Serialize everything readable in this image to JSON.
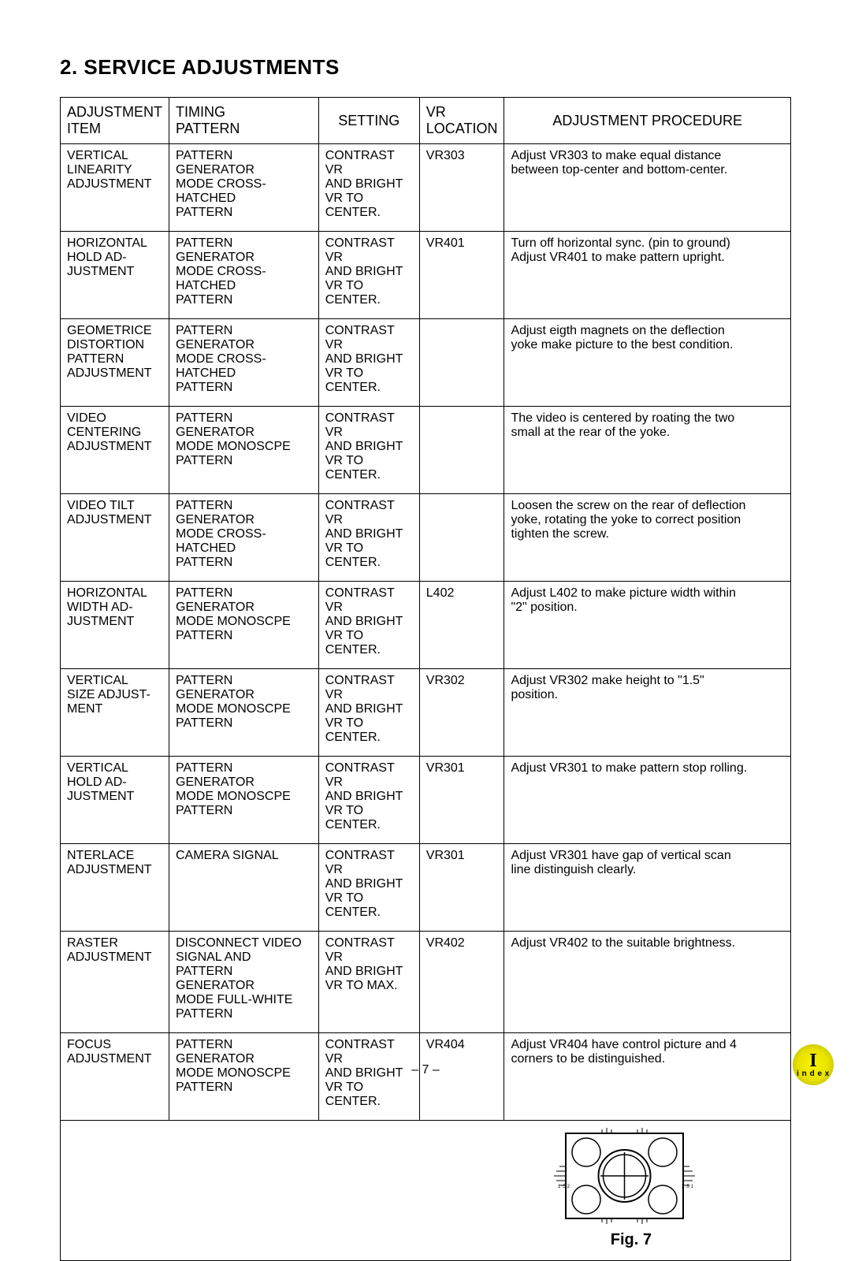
{
  "section_title": "2. SERVICE ADJUSTMENTS",
  "headers": {
    "item": [
      "ADJUSTMENT",
      "ITEM"
    ],
    "timing": [
      "TIMING",
      "PATTERN"
    ],
    "setting": [
      "SETTING"
    ],
    "vr": [
      "VR",
      "LOCATION"
    ],
    "proc": [
      "ADJUSTMENT  PROCEDURE"
    ]
  },
  "rows": [
    {
      "item": [
        "VERTICAL",
        "LINEARITY",
        "ADJUSTMENT"
      ],
      "timing": [
        "PATTERN GENERATOR",
        "MODE CROSS-HATCHED",
        "PATTERN"
      ],
      "setting": [
        "CONTRAST VR",
        "AND BRIGHT",
        "VR TO CENTER."
      ],
      "vr": "VR303",
      "proc": [
        "Adjust VR303 to make equal distance",
        "between top-center and bottom-center."
      ]
    },
    {
      "item": [
        "HORIZONTAL",
        "HOLD AD-",
        "JUSTMENT"
      ],
      "timing": [
        "PATTERN GENERATOR",
        "MODE CROSS-HATCHED",
        "PATTERN"
      ],
      "setting": [
        "CONTRAST VR",
        "AND BRIGHT",
        "VR TO CENTER."
      ],
      "vr": "VR401",
      "proc": [
        "Turn off horizontal sync. (pin to ground)",
        "Adjust VR401 to make pattern upright."
      ]
    },
    {
      "item": [
        "GEOMETRICE",
        "DISTORTION",
        "PATTERN",
        "ADJUSTMENT"
      ],
      "timing": [
        "PATTERN GENERATOR",
        "MODE CROSS-HATCHED",
        "PATTERN"
      ],
      "setting": [
        "CONTRAST VR",
        "AND BRIGHT",
        "VR TO CENTER."
      ],
      "vr": "",
      "proc": [
        "Adjust eigth magnets on the deflection",
        "yoke make picture to the best condition."
      ]
    },
    {
      "item": [
        "VIDEO",
        "CENTERING",
        "ADJUSTMENT"
      ],
      "timing": [
        "PATTERN GENERATOR",
        "MODE MONOSCPE",
        "PATTERN"
      ],
      "setting": [
        "CONTRAST VR",
        "AND BRIGHT",
        "VR TO CENTER."
      ],
      "vr": "",
      "proc": [
        "The video is centered by roating the two",
        "small at the rear of the yoke."
      ]
    },
    {
      "item": [
        "VIDEO TILT",
        "ADJUSTMENT"
      ],
      "timing": [
        "PATTERN GENERATOR",
        "MODE CROSS-HATCHED",
        "PATTERN"
      ],
      "setting": [
        "CONTRAST VR",
        "AND BRIGHT",
        "VR TO CENTER."
      ],
      "vr": "",
      "proc": [
        "Loosen the screw on the rear of deflection",
        "yoke, rotating the yoke to correct position",
        "tighten the screw."
      ]
    },
    {
      "item": [
        "HORIZONTAL",
        "WIDTH  AD-",
        "JUSTMENT"
      ],
      "timing": [
        "PATTERN GENERATOR",
        "MODE MONOSCPE",
        "PATTERN"
      ],
      "setting": [
        "CONTRAST VR",
        "AND BRIGHT",
        "VR TO CENTER."
      ],
      "vr": "L402",
      "proc": [
        "Adjust L402 to make picture width within",
        "\"2\" position."
      ]
    },
    {
      "item": [
        "VERTICAL",
        "SIZE ADJUST-",
        "MENT"
      ],
      "timing": [
        "PATTERN GENERATOR",
        "MODE MONOSCPE",
        "PATTERN"
      ],
      "setting": [
        "CONTRAST VR",
        "AND BRIGHT",
        "VR TO CENTER."
      ],
      "vr": "VR302",
      "proc": [
        "Adjust VR302 make height to \"1.5\"",
        "position."
      ]
    },
    {
      "item": [
        "VERTICAL",
        "HOLD AD-",
        "JUSTMENT"
      ],
      "timing": [
        "PATTERN GENERATOR",
        "MODE MONOSCPE",
        "PATTERN"
      ],
      "setting": [
        "CONTRAST VR",
        "AND BRIGHT",
        "VR TO CENTER."
      ],
      "vr": "VR301",
      "proc": [
        "Adjust VR301 to make pattern stop rolling."
      ]
    },
    {
      "item": [
        "NTERLACE",
        "ADJUSTMENT"
      ],
      "timing": [
        "CAMERA SIGNAL"
      ],
      "setting": [
        "CONTRAST VR",
        "AND BRIGHT",
        "VR TO CENTER."
      ],
      "vr": "VR301",
      "proc": [
        "Adjust VR301 have gap of vertical scan",
        "line distinguish clearly."
      ]
    },
    {
      "item": [
        "RASTER",
        "ADJUSTMENT"
      ],
      "timing": [
        "DISCONNECT VIDEO",
        "SIGNAL AND",
        "PATTERN GENERATOR",
        "MODE FULL-WHITE",
        "PATTERN"
      ],
      "setting": [
        "CONTRAST VR",
        "AND BRIGHT",
        "VR TO MAX."
      ],
      "vr": "VR402",
      "proc": [
        "Adjust VR402 to the suitable brightness."
      ]
    },
    {
      "item": [
        "FOCUS",
        "ADJUSTMENT"
      ],
      "timing": [
        "PATTERN GENERATOR",
        "MODE MONOSCPE",
        "PATTERN"
      ],
      "setting": [
        "CONTRAST VR",
        "AND BRIGHT",
        "VR TO CENTER."
      ],
      "vr": "VR404",
      "proc": [
        "Adjust VR404 have control picture and 4",
        "corners to be distinguished."
      ]
    }
  ],
  "figure_caption": "Fig. 7",
  "page_number": "– 7 –",
  "index_badge": {
    "top": "I",
    "bottom": "i n d e x"
  }
}
